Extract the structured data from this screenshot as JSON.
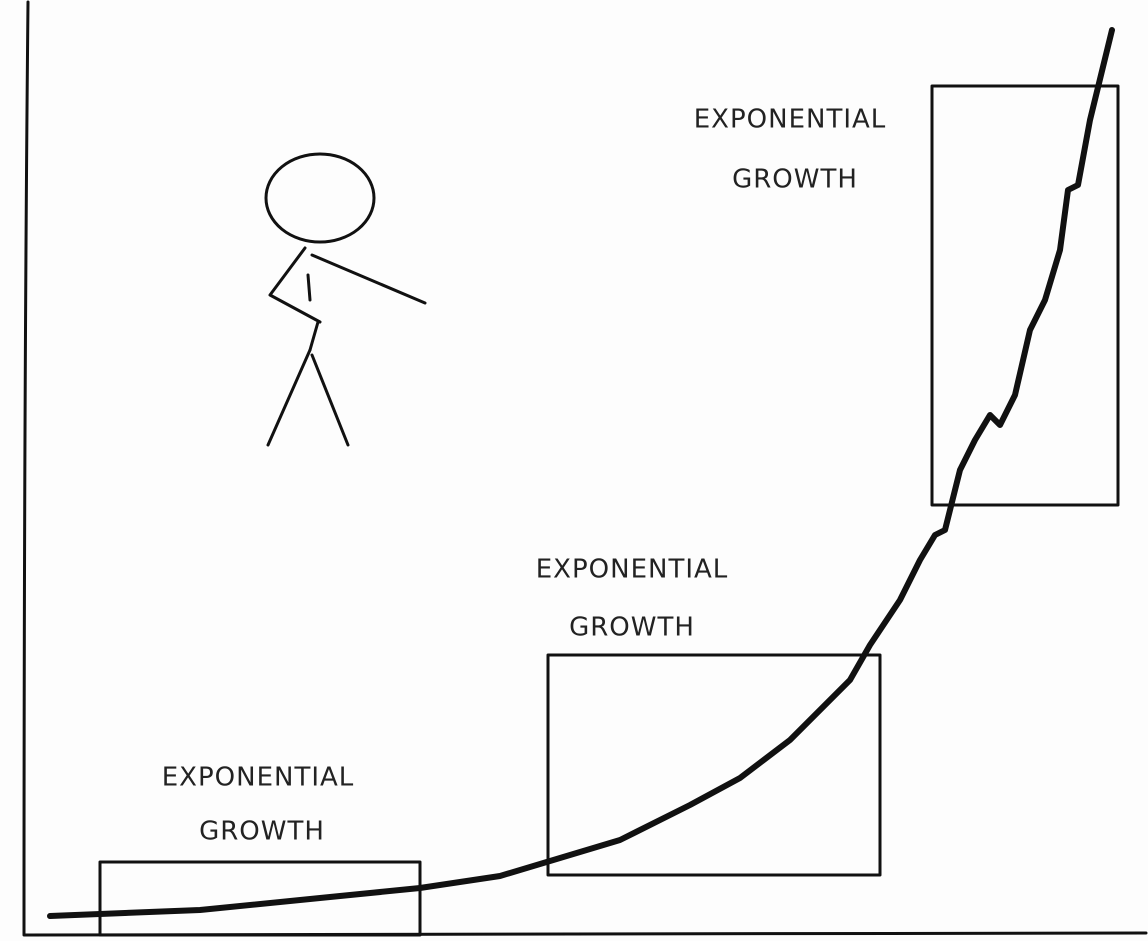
{
  "annotations": [
    {
      "line1": "EXPONENTIAL",
      "line2": "GROWTH"
    },
    {
      "line1": "EXPONENTIAL",
      "line2": "GROWTH"
    },
    {
      "line1": "EXPONENTIAL",
      "line2": "GROWTH"
    }
  ]
}
